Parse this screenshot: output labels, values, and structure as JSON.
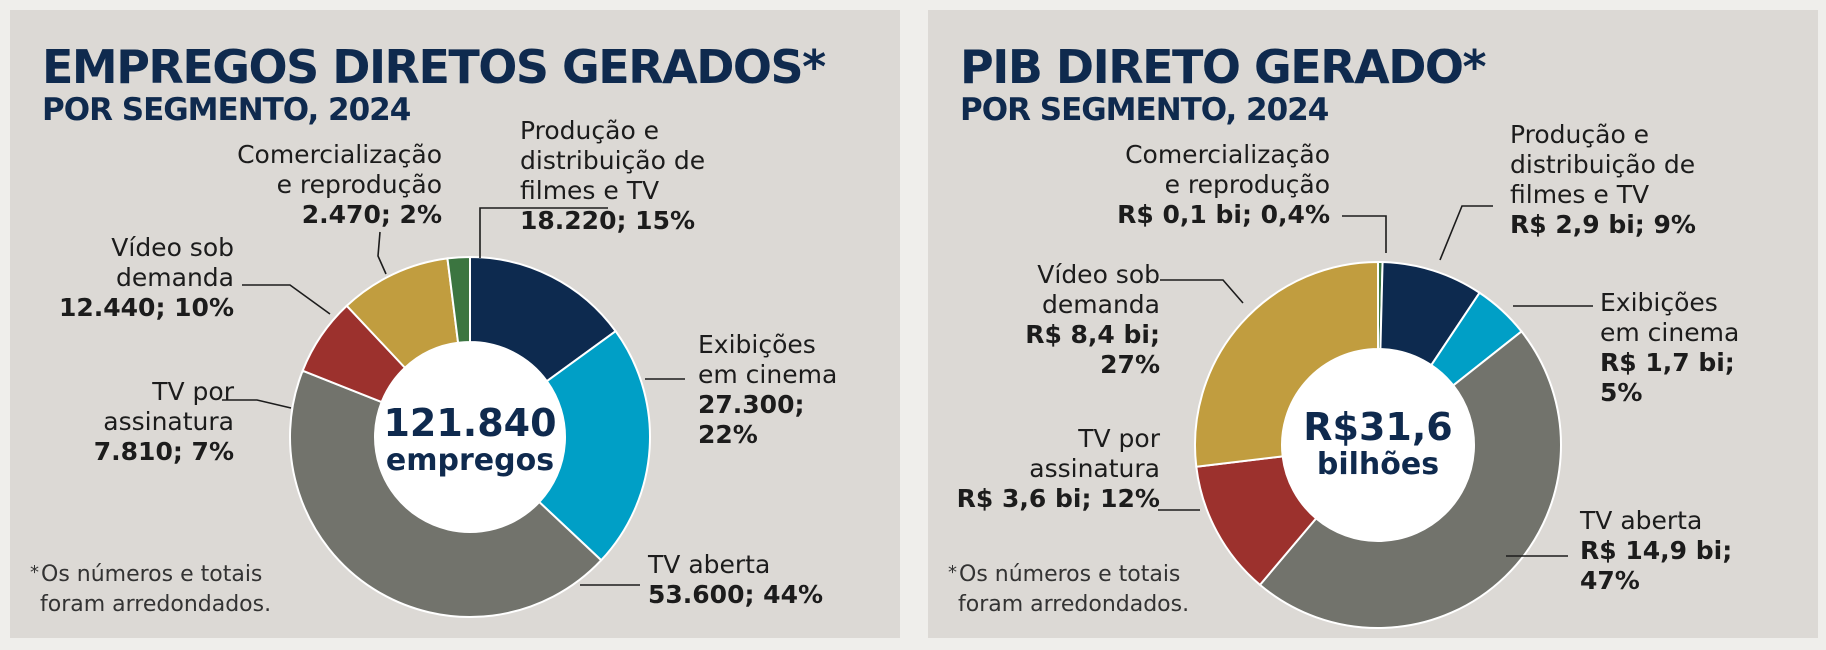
{
  "chart_data": [
    {
      "type": "pie",
      "title": "EMPREGOS DIRETOS GERADOS*",
      "subtitle": "POR SEGMENTO, 2024",
      "center_value": "121.840",
      "center_unit": "empregos",
      "footnote_mark": "*",
      "footnote_line1": "Os números e totais",
      "footnote_line2": "foram arredondados.",
      "slices": [
        {
          "name": "Produção e distribuição de filmes e TV",
          "name_lines": [
            "Produção e",
            "distribuição de",
            "filmes e TV"
          ],
          "value": 18220,
          "percent": 15,
          "value_label": "18.220; 15%",
          "color": "#0d2a4f"
        },
        {
          "name": "Exibições em cinema",
          "name_lines": [
            "Exibições",
            "em cinema"
          ],
          "value": 27300,
          "percent": 22,
          "value_label": "27.300;\n22%",
          "color": "#009fc6"
        },
        {
          "name": "TV aberta",
          "name_lines": [
            "TV aberta"
          ],
          "value": 53600,
          "percent": 44,
          "value_label": "53.600; 44%",
          "color": "#72736c"
        },
        {
          "name": "TV por assinatura",
          "name_lines": [
            "TV por",
            "assinatura"
          ],
          "value": 7810,
          "percent": 7,
          "value_label": "7.810; 7%",
          "color": "#9c312d"
        },
        {
          "name": "Vídeo sob demanda",
          "name_lines": [
            "Vídeo sob",
            "demanda"
          ],
          "value": 12440,
          "percent": 10,
          "value_label": "12.440; 10%",
          "color": "#c19d3f"
        },
        {
          "name": "Comercialização e reprodução",
          "name_lines": [
            "Comercialização",
            "e reprodução"
          ],
          "value": 2470,
          "percent": 2,
          "value_label": "2.470; 2%",
          "color": "#3b7540"
        }
      ]
    },
    {
      "type": "pie",
      "title": "PIB DIRETO GERADO*",
      "subtitle": "POR SEGMENTO, 2024",
      "center_value": "R$31,6",
      "center_unit": "bilhões",
      "footnote_mark": "*",
      "footnote_line1": "Os números e totais",
      "footnote_line2": "foram arredondados.",
      "slices": [
        {
          "name": "Comercialização e reprodução",
          "name_lines": [
            "Comercialização",
            "e reprodução"
          ],
          "value": 0.1,
          "percent": 0.4,
          "value_label": "R$ 0,1 bi; 0,4%",
          "color": "#3b7540"
        },
        {
          "name": "Produção e distribuição de filmes e TV",
          "name_lines": [
            "Produção e",
            "distribuição de",
            "filmes e TV"
          ],
          "value": 2.9,
          "percent": 9,
          "value_label": "R$ 2,9 bi; 9%",
          "color": "#0d2a4f"
        },
        {
          "name": "Exibições em cinema",
          "name_lines": [
            "Exibições",
            "em cinema"
          ],
          "value": 1.7,
          "percent": 5,
          "value_label": "R$ 1,7 bi;\n5%",
          "color": "#009fc6"
        },
        {
          "name": "TV aberta",
          "name_lines": [
            "TV aberta"
          ],
          "value": 14.9,
          "percent": 47,
          "value_label": "R$ 14,9 bi;\n47%",
          "color": "#72736c"
        },
        {
          "name": "TV por assinatura",
          "name_lines": [
            "TV por",
            "assinatura"
          ],
          "value": 3.6,
          "percent": 12,
          "value_label": "R$ 3,6 bi; 12%",
          "color": "#9c312d"
        },
        {
          "name": "Vídeo sob demanda",
          "name_lines": [
            "Vídeo sob",
            "demanda"
          ],
          "value": 8.4,
          "percent": 27,
          "value_label": "R$ 8,4 bi;\n27%",
          "color": "#c19d3f"
        }
      ]
    }
  ]
}
